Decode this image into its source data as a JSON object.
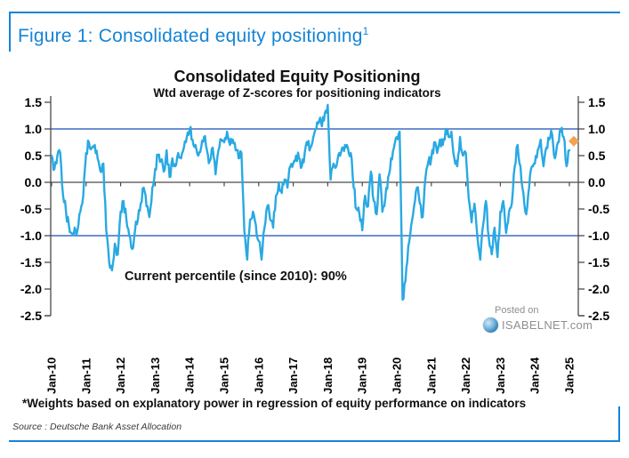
{
  "figure": {
    "title": "Figure 1: Consolidated equity positioning",
    "superscript": "1"
  },
  "chart_data": {
    "type": "line",
    "title": "Consolidated Equity Positioning",
    "subtitle": "Wtd average of Z-scores for positioning indicators",
    "annotation": "Current percentile (since 2010): 90%",
    "x_tick_labels": [
      "Jan-10",
      "Jan-11",
      "Jan-12",
      "Jan-13",
      "Jan-14",
      "Jan-15",
      "Jan-16",
      "Jan-17",
      "Jan-18",
      "Jan-19",
      "Jan-20",
      "Jan-21",
      "Jan-22",
      "Jan-23",
      "Jan-24",
      "Jan-25"
    ],
    "y_ticks": [
      1.5,
      1.0,
      0.5,
      0.0,
      -0.5,
      -1.0,
      -1.5,
      -2.0,
      -2.5
    ],
    "ylim": [
      -2.5,
      1.5
    ],
    "reference_lines": [
      1.0,
      -1.0
    ],
    "grid": "off",
    "legend": "none",
    "series": [
      {
        "name": "Wtd average of Z-scores for positioning indicators",
        "color": "#29a9e2",
        "x_start_label": "Jan-10",
        "values_per_year": 12,
        "values": [
          0.5,
          0.25,
          0.5,
          0.55,
          -0.25,
          -0.55,
          -0.8,
          -0.95,
          -0.85,
          -0.9,
          -0.55,
          -0.25,
          0.55,
          0.75,
          0.65,
          0.7,
          0.45,
          0.2,
          0.35,
          -0.9,
          -1.5,
          -1.65,
          -1.15,
          -1.35,
          -0.55,
          -0.35,
          -0.7,
          -1.0,
          -1.25,
          -0.9,
          -0.7,
          -0.4,
          -0.1,
          -0.45,
          -0.65,
          -0.1,
          0.25,
          0.5,
          0.4,
          0.2,
          0.6,
          0.1,
          0.45,
          0.3,
          0.55,
          0.45,
          0.65,
          0.85,
          1.0,
          0.8,
          0.7,
          0.5,
          0.65,
          0.85,
          0.6,
          0.4,
          0.65,
          0.15,
          0.6,
          0.8,
          0.75,
          0.95,
          0.7,
          0.8,
          0.6,
          0.45,
          0.55,
          -0.9,
          -1.45,
          -0.7,
          -0.55,
          -0.8,
          -1.1,
          -1.45,
          -0.85,
          -0.45,
          -0.7,
          -0.85,
          -0.25,
          0.0,
          -0.2,
          0.05,
          -0.1,
          0.3,
          0.35,
          0.5,
          0.45,
          0.3,
          0.55,
          0.7,
          0.65,
          0.85,
          1.0,
          1.15,
          1.05,
          1.3,
          1.45,
          0.05,
          0.35,
          0.3,
          0.55,
          0.65,
          0.7,
          0.65,
          0.55,
          -0.1,
          -0.5,
          -0.6,
          -0.9,
          -0.25,
          -0.45,
          0.2,
          -0.35,
          -0.6,
          0.15,
          -0.55,
          -0.3,
          0.1,
          0.45,
          0.65,
          0.85,
          0.95,
          -2.2,
          -1.85,
          -1.2,
          -0.8,
          -0.45,
          -0.1,
          -0.4,
          -0.65,
          0.1,
          0.4,
          0.45,
          0.75,
          0.55,
          0.8,
          0.7,
          1.0,
          0.85,
          0.95,
          0.45,
          0.3,
          0.85,
          0.5,
          0.55,
          -0.3,
          -0.75,
          -0.4,
          -1.0,
          -1.45,
          -0.8,
          -0.35,
          -1.05,
          -1.35,
          -0.85,
          -1.4,
          -0.55,
          -0.35,
          -0.95,
          -0.55,
          -0.4,
          0.3,
          0.7,
          0.3,
          -0.2,
          -0.6,
          -0.1,
          0.3,
          0.35,
          0.6,
          0.8,
          0.3,
          0.65,
          0.8,
          0.9,
          0.45,
          0.75,
          0.95,
          0.85,
          0.3,
          0.6
        ]
      }
    ],
    "end_marker": {
      "shape": "diamond",
      "color": "#f2a351",
      "value": 0.77
    }
  },
  "watermark": {
    "posted_on": "Posted on",
    "site": "ISABELNET.com"
  },
  "footnote": "*Weights based on explanatory power in regression of equity performance on indicators",
  "source": "Source : Deutsche Bank Asset Allocation",
  "colors": {
    "accent_blue": "#1584d6",
    "series_cyan": "#29a9e2",
    "reference_blue": "#3f6bc4",
    "axis_gray": "#4a4a4a",
    "marker_orange": "#f2a351"
  }
}
